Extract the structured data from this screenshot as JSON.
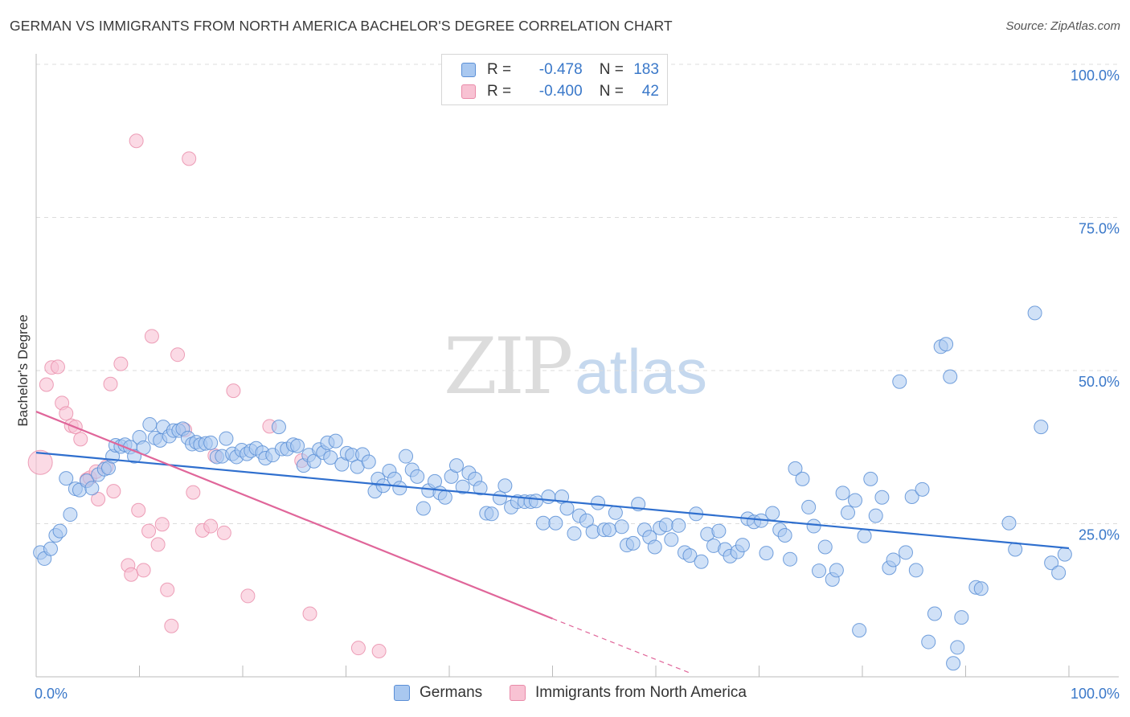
{
  "header": {
    "title": "GERMAN VS IMMIGRANTS FROM NORTH AMERICA BACHELOR'S DEGREE CORRELATION CHART",
    "source": "Source: ZipAtlas.com"
  },
  "watermark": {
    "zip": "ZIP",
    "atlas": "atlas"
  },
  "legend_top": {
    "rows": [
      {
        "r_label": "R =",
        "r_value": "-0.478",
        "n_label": "N =",
        "n_value": "183",
        "color": "#a9c8f0",
        "border": "#5b8fd6"
      },
      {
        "r_label": "R =",
        "r_value": "-0.400",
        "n_label": "N =",
        "n_value": "42",
        "color": "#f8c2d3",
        "border": "#e98aa8"
      }
    ]
  },
  "legend_bottom": {
    "germans": "Germans",
    "immigrants": "Immigrants from North America"
  },
  "colors": {
    "blue_fill": "#a9c8f0",
    "blue_stroke": "#5b8fd6",
    "blue_line": "#2f6fce",
    "pink_fill": "#f8c2d3",
    "pink_stroke": "#e98aa8",
    "pink_line": "#e0669a",
    "tick_text": "#3a78c9",
    "grid": "#dcdcdc"
  },
  "chart_data": {
    "type": "scatter",
    "title": "GERMAN VS IMMIGRANTS FROM NORTH AMERICA BACHELOR'S DEGREE CORRELATION CHART",
    "xlabel": "",
    "ylabel": "Bachelor's Degree",
    "xlim": [
      0,
      100
    ],
    "ylim": [
      0,
      100
    ],
    "x_tick_labels": [
      "0.0%",
      "100.0%"
    ],
    "y_tick_labels": [
      "25.0%",
      "50.0%",
      "75.0%",
      "100.0%"
    ],
    "y_ticks": [
      25,
      50,
      75,
      100
    ],
    "grid": true,
    "legend_placement": "top-center",
    "series": [
      {
        "name": "Germans",
        "trend": {
          "x0": 0,
          "y0": 36.6,
          "x1": 100,
          "y1": 21.0
        },
        "points": [
          [
            0.4,
            20.3
          ],
          [
            0.8,
            19.3
          ],
          [
            1.4,
            20.9
          ],
          [
            1.9,
            23.1
          ],
          [
            2.3,
            23.8
          ],
          [
            2.9,
            32.4
          ],
          [
            3.3,
            26.5
          ],
          [
            3.8,
            30.7
          ],
          [
            4.2,
            30.5
          ],
          [
            4.9,
            32.0
          ],
          [
            5.4,
            30.8
          ],
          [
            6.0,
            33.0
          ],
          [
            6.6,
            33.9
          ],
          [
            7.0,
            34.1
          ],
          [
            7.4,
            36.0
          ],
          [
            7.7,
            37.8
          ],
          [
            8.2,
            37.6
          ],
          [
            8.6,
            37.9
          ],
          [
            9.1,
            37.5
          ],
          [
            9.5,
            36.0
          ],
          [
            10.0,
            39.1
          ],
          [
            10.4,
            37.4
          ],
          [
            11.0,
            41.2
          ],
          [
            11.5,
            39.0
          ],
          [
            12.0,
            38.6
          ],
          [
            12.3,
            40.8
          ],
          [
            12.9,
            39.3
          ],
          [
            13.3,
            40.2
          ],
          [
            13.8,
            40.2
          ],
          [
            14.2,
            40.5
          ],
          [
            14.7,
            39.0
          ],
          [
            15.1,
            38.0
          ],
          [
            15.5,
            38.3
          ],
          [
            15.9,
            37.9
          ],
          [
            16.4,
            38.1
          ],
          [
            16.9,
            38.2
          ],
          [
            17.5,
            35.9
          ],
          [
            18.0,
            36.0
          ],
          [
            18.4,
            38.9
          ],
          [
            19.0,
            36.4
          ],
          [
            19.4,
            35.9
          ],
          [
            19.9,
            37.0
          ],
          [
            20.4,
            36.4
          ],
          [
            20.8,
            36.9
          ],
          [
            21.3,
            37.3
          ],
          [
            21.9,
            36.6
          ],
          [
            22.2,
            35.7
          ],
          [
            22.9,
            36.2
          ],
          [
            23.5,
            40.8
          ],
          [
            23.8,
            37.2
          ],
          [
            24.3,
            37.2
          ],
          [
            24.9,
            37.9
          ],
          [
            25.3,
            37.7
          ],
          [
            25.9,
            34.5
          ],
          [
            26.4,
            36.2
          ],
          [
            26.9,
            35.2
          ],
          [
            27.4,
            37.1
          ],
          [
            27.8,
            36.6
          ],
          [
            28.2,
            38.2
          ],
          [
            28.5,
            35.8
          ],
          [
            29.0,
            38.5
          ],
          [
            29.6,
            34.7
          ],
          [
            30.1,
            36.5
          ],
          [
            30.6,
            36.2
          ],
          [
            31.1,
            34.3
          ],
          [
            31.6,
            36.3
          ],
          [
            32.2,
            35.1
          ],
          [
            32.8,
            30.3
          ],
          [
            33.1,
            32.3
          ],
          [
            33.6,
            31.2
          ],
          [
            34.2,
            33.6
          ],
          [
            34.7,
            32.3
          ],
          [
            35.2,
            30.8
          ],
          [
            35.8,
            36.0
          ],
          [
            36.4,
            33.8
          ],
          [
            36.9,
            32.7
          ],
          [
            37.5,
            27.5
          ],
          [
            38.0,
            30.4
          ],
          [
            38.6,
            31.9
          ],
          [
            39.1,
            30.0
          ],
          [
            39.6,
            29.3
          ],
          [
            40.2,
            32.7
          ],
          [
            40.7,
            34.5
          ],
          [
            41.3,
            31.0
          ],
          [
            41.9,
            33.3
          ],
          [
            42.5,
            32.3
          ],
          [
            43.0,
            30.8
          ],
          [
            43.6,
            26.7
          ],
          [
            44.1,
            26.6
          ],
          [
            44.9,
            29.2
          ],
          [
            45.4,
            31.2
          ],
          [
            46.0,
            27.7
          ],
          [
            46.6,
            28.6
          ],
          [
            47.3,
            28.6
          ],
          [
            47.9,
            28.6
          ],
          [
            48.4,
            28.7
          ],
          [
            49.1,
            25.1
          ],
          [
            49.6,
            29.4
          ],
          [
            50.3,
            25.1
          ],
          [
            50.9,
            29.4
          ],
          [
            51.4,
            27.5
          ],
          [
            52.1,
            23.4
          ],
          [
            52.6,
            26.3
          ],
          [
            53.3,
            25.5
          ],
          [
            53.9,
            23.7
          ],
          [
            54.4,
            28.4
          ],
          [
            55.0,
            24.0
          ],
          [
            55.5,
            24.0
          ],
          [
            56.1,
            26.8
          ],
          [
            56.7,
            24.5
          ],
          [
            57.2,
            21.5
          ],
          [
            57.8,
            21.8
          ],
          [
            58.3,
            28.2
          ],
          [
            58.9,
            24.0
          ],
          [
            59.4,
            22.8
          ],
          [
            59.9,
            21.2
          ],
          [
            60.4,
            24.3
          ],
          [
            61.0,
            24.8
          ],
          [
            61.5,
            22.4
          ],
          [
            62.2,
            24.7
          ],
          [
            62.8,
            20.3
          ],
          [
            63.3,
            19.8
          ],
          [
            63.9,
            26.6
          ],
          [
            64.4,
            18.8
          ],
          [
            65.0,
            23.3
          ],
          [
            65.6,
            21.4
          ],
          [
            66.1,
            23.8
          ],
          [
            66.7,
            20.8
          ],
          [
            67.2,
            19.7
          ],
          [
            67.9,
            20.4
          ],
          [
            68.4,
            21.5
          ],
          [
            68.9,
            25.8
          ],
          [
            69.5,
            25.3
          ],
          [
            70.2,
            25.5
          ],
          [
            70.7,
            20.2
          ],
          [
            71.3,
            26.7
          ],
          [
            72.0,
            24.0
          ],
          [
            72.5,
            23.1
          ],
          [
            73.0,
            19.2
          ],
          [
            73.5,
            34.0
          ],
          [
            74.2,
            32.3
          ],
          [
            74.8,
            27.7
          ],
          [
            75.3,
            24.6
          ],
          [
            75.8,
            17.3
          ],
          [
            76.4,
            21.2
          ],
          [
            77.1,
            15.9
          ],
          [
            77.5,
            17.4
          ],
          [
            78.1,
            30.0
          ],
          [
            78.6,
            26.8
          ],
          [
            79.3,
            28.8
          ],
          [
            79.7,
            7.6
          ],
          [
            80.2,
            23.0
          ],
          [
            80.8,
            32.3
          ],
          [
            81.3,
            26.3
          ],
          [
            81.9,
            29.3
          ],
          [
            82.6,
            17.8
          ],
          [
            83.0,
            19.1
          ],
          [
            83.6,
            48.2
          ],
          [
            84.2,
            20.3
          ],
          [
            84.8,
            29.4
          ],
          [
            85.2,
            17.4
          ],
          [
            85.8,
            30.6
          ],
          [
            86.4,
            5.7
          ],
          [
            87.0,
            10.3
          ],
          [
            87.6,
            53.9
          ],
          [
            88.1,
            54.3
          ],
          [
            88.5,
            49.0
          ],
          [
            88.8,
            2.2
          ],
          [
            89.2,
            4.8
          ],
          [
            89.6,
            9.7
          ],
          [
            91.0,
            14.6
          ],
          [
            91.5,
            14.4
          ],
          [
            94.2,
            25.1
          ],
          [
            94.8,
            20.8
          ],
          [
            96.7,
            59.4
          ],
          [
            97.3,
            40.8
          ],
          [
            98.3,
            18.6
          ],
          [
            99.0,
            17.0
          ],
          [
            99.6,
            20.0
          ]
        ]
      },
      {
        "name": "Immigrants from North America",
        "trend": {
          "x0": 0,
          "y0": 43.3,
          "x1": 50,
          "y1": 9.5
        },
        "trend_dashed_to": {
          "x": 63.5,
          "y": 0.5
        },
        "points": [
          [
            0.4,
            35.0
          ],
          [
            1.0,
            47.7
          ],
          [
            1.5,
            50.5
          ],
          [
            2.1,
            50.6
          ],
          [
            2.5,
            44.7
          ],
          [
            2.9,
            43.0
          ],
          [
            3.4,
            41.0
          ],
          [
            3.8,
            40.8
          ],
          [
            4.3,
            38.8
          ],
          [
            4.9,
            32.2
          ],
          [
            5.2,
            32.5
          ],
          [
            5.8,
            33.5
          ],
          [
            6.0,
            29.0
          ],
          [
            6.8,
            34.3
          ],
          [
            7.2,
            47.8
          ],
          [
            7.5,
            30.3
          ],
          [
            8.2,
            51.1
          ],
          [
            8.9,
            18.2
          ],
          [
            9.2,
            16.7
          ],
          [
            9.7,
            87.5
          ],
          [
            9.9,
            27.2
          ],
          [
            10.4,
            17.4
          ],
          [
            10.9,
            23.8
          ],
          [
            11.2,
            55.6
          ],
          [
            11.8,
            21.6
          ],
          [
            12.2,
            24.9
          ],
          [
            12.7,
            14.2
          ],
          [
            13.1,
            8.3
          ],
          [
            13.7,
            52.6
          ],
          [
            14.4,
            40.3
          ],
          [
            14.8,
            84.6
          ],
          [
            15.2,
            30.1
          ],
          [
            16.1,
            23.9
          ],
          [
            16.9,
            24.6
          ],
          [
            17.3,
            36.1
          ],
          [
            18.2,
            23.5
          ],
          [
            19.1,
            46.7
          ],
          [
            20.5,
            13.2
          ],
          [
            22.6,
            40.9
          ],
          [
            25.7,
            35.3
          ],
          [
            26.5,
            10.3
          ],
          [
            31.2,
            4.7
          ],
          [
            33.2,
            4.2
          ]
        ]
      }
    ]
  }
}
